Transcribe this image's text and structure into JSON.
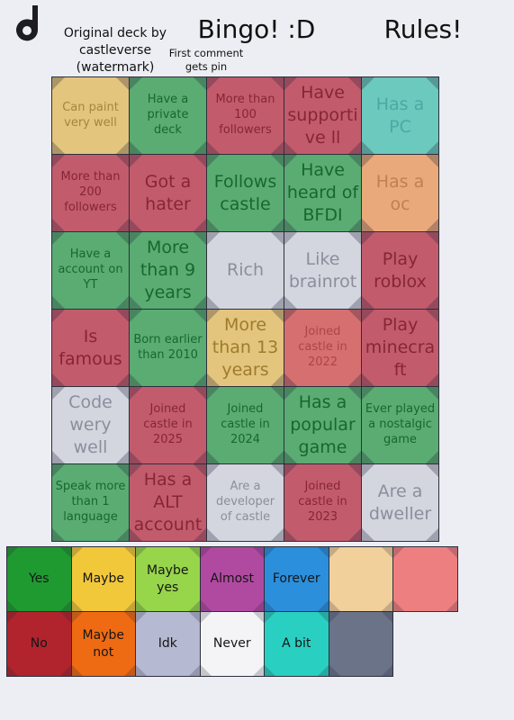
{
  "header": {
    "credit": "Original deck by castleverse (watermark)",
    "note": "First comment gets pin",
    "title": "Bingo! :D",
    "rules": "Rules!"
  },
  "grid": [
    [
      "Can paint very well",
      "Have a private deck",
      "More than 100 followers",
      "Have supportive ll",
      "Has a PC"
    ],
    [
      "More than 200 followers",
      "Got a hater",
      "Follows castle",
      "Have heard of BFDI",
      "Has a oc"
    ],
    [
      "Have a account on YT",
      "More than 9 years",
      "Rich",
      "Like brainrot",
      "Play roblox"
    ],
    [
      "Is famous",
      "Born earlier than 2010",
      "More than 13 years",
      "Joined castle in 2022",
      "Play minecraft"
    ],
    [
      "Code wery well",
      "Joined castle in 2025",
      "Joined castle in 2024",
      "Has a popular game",
      "Ever played a nostalgic game"
    ],
    [
      "Speak more than 1 language",
      "Has a ALT account",
      "Are a developer of castle",
      "Joined castle in 2023",
      "Are a dweller"
    ]
  ],
  "legend": [
    [
      "Yes",
      "Maybe",
      "Maybe yes",
      "Almost",
      "Forever"
    ],
    [
      "No",
      "Maybe not",
      "Idk",
      "Never",
      "A bit"
    ]
  ]
}
